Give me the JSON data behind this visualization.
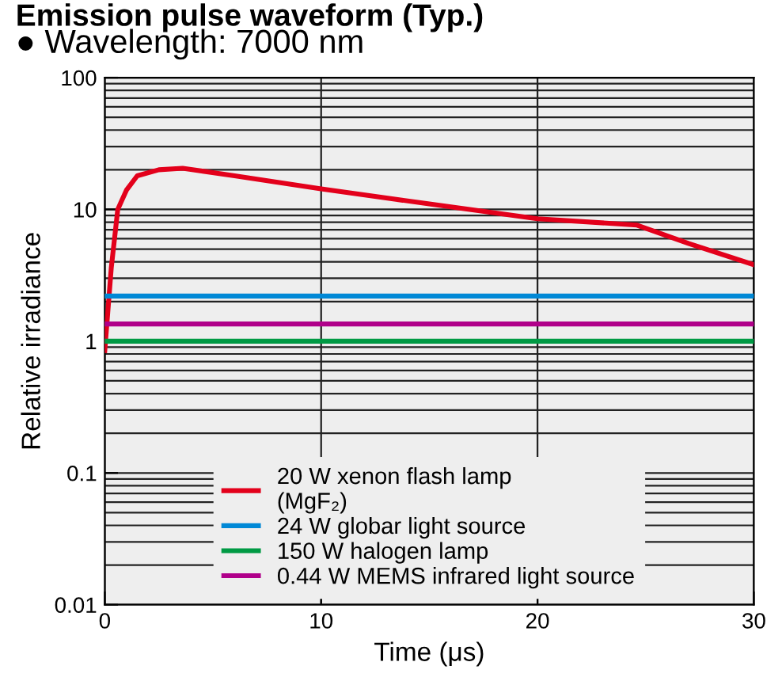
{
  "chart_data": {
    "type": "line",
    "title": "Emission pulse waveform (Typ.)",
    "subtitle": "● Wavelength: 7000 nm",
    "xlabel": "Time (μs)",
    "ylabel": "Relative irradiance",
    "xlim": [
      0,
      30
    ],
    "xticks": [
      0,
      10,
      20,
      30
    ],
    "ylim": [
      0.01,
      100
    ],
    "yticks": [
      0.01,
      0.1,
      1,
      10,
      100
    ],
    "log": "y",
    "grid": true,
    "legend": "bottom",
    "marker": "none",
    "line_style": "solid",
    "series": [
      {
        "name": "20 W xenon flash lamp\n(MgF₂)",
        "color": "#e3001b",
        "x": [
          0,
          0.3,
          0.6,
          1.0,
          1.5,
          2.5,
          3.6,
          6,
          10,
          15,
          20,
          24.6,
          27,
          30
        ],
        "values": [
          0.85,
          3.6,
          10,
          14,
          18,
          20,
          20.5,
          18,
          14.3,
          11,
          8.5,
          7.6,
          5.5,
          3.8
        ]
      },
      {
        "name": "24 W globar light source",
        "color": "#0088d6",
        "x": [
          0,
          30
        ],
        "values": [
          2.2,
          2.2
        ]
      },
      {
        "name": "150 W halogen lamp",
        "color": "#009a44",
        "x": [
          0,
          30
        ],
        "values": [
          1.0,
          1.0
        ]
      },
      {
        "name": "0.44 W MEMS infrared light source",
        "color": "#b0008a",
        "x": [
          0,
          30
        ],
        "values": [
          1.35,
          1.35
        ]
      }
    ]
  }
}
